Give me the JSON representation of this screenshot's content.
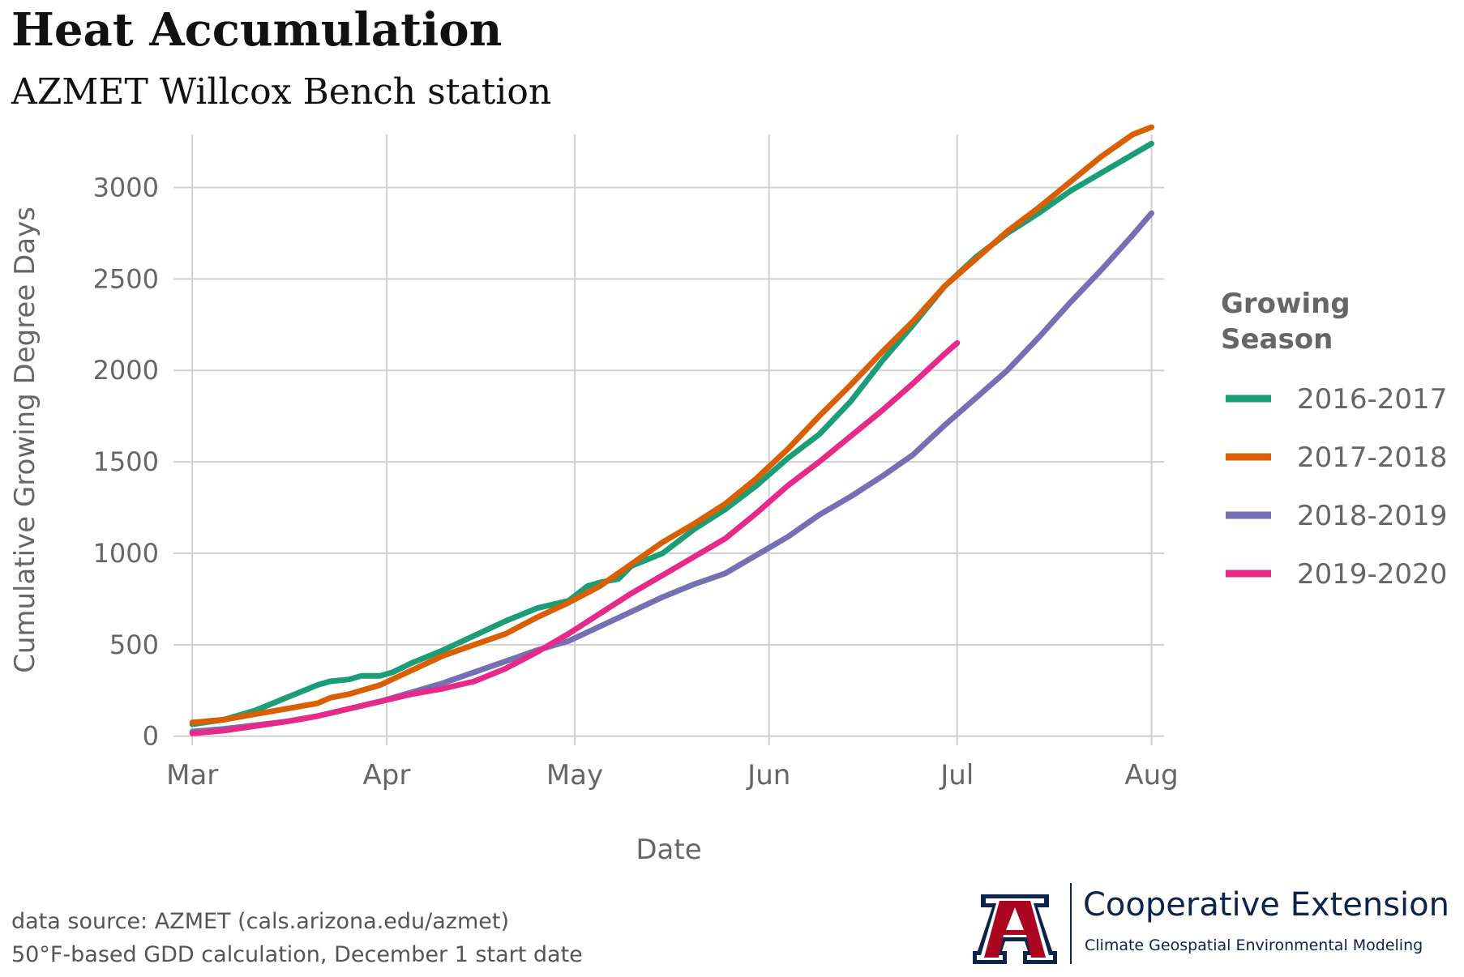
{
  "title": "Heat Accumulation",
  "subtitle": "AZMET Willcox Bench station",
  "chart_data": {
    "type": "line",
    "xlabel": "Date",
    "ylabel": "Cumulative  Growing  Degree  Days",
    "x_ticks": [
      "Mar",
      "Apr",
      "May",
      "Jun",
      "Jul",
      "Aug"
    ],
    "x_tick_days": [
      0,
      31,
      61,
      92,
      122,
      153
    ],
    "y_ticks": [
      0,
      500,
      1000,
      1500,
      2000,
      2500,
      3000
    ],
    "xlim": [
      -3,
      155
    ],
    "ylim": [
      -50,
      3290
    ],
    "grid": true,
    "legend_title": "Growing\nSeason",
    "legend_position": "right",
    "series": [
      {
        "name": "2016-2017",
        "color": "#1b9e77",
        "x": [
          0,
          5,
          10,
          15,
          20,
          22,
          25,
          27,
          30,
          32,
          35,
          40,
          45,
          50,
          55,
          60,
          63,
          65,
          68,
          70,
          75,
          80,
          85,
          90,
          95,
          100,
          105,
          110,
          115,
          120,
          125,
          130,
          135,
          140,
          145,
          150,
          153
        ],
        "y": [
          65,
          90,
          140,
          210,
          280,
          300,
          310,
          330,
          330,
          350,
          400,
          470,
          550,
          630,
          700,
          740,
          820,
          840,
          860,
          930,
          1000,
          1130,
          1240,
          1370,
          1520,
          1650,
          1830,
          2050,
          2250,
          2460,
          2620,
          2750,
          2860,
          2980,
          3080,
          3180,
          3240
        ]
      },
      {
        "name": "2017-2018",
        "color": "#d95f02",
        "x": [
          0,
          5,
          10,
          15,
          20,
          22,
          25,
          30,
          35,
          40,
          45,
          50,
          55,
          60,
          65,
          70,
          75,
          80,
          85,
          90,
          95,
          100,
          105,
          110,
          115,
          120,
          125,
          130,
          135,
          140,
          145,
          150,
          153
        ],
        "y": [
          75,
          90,
          120,
          150,
          180,
          210,
          230,
          280,
          360,
          440,
          500,
          560,
          650,
          730,
          820,
          940,
          1060,
          1160,
          1270,
          1410,
          1570,
          1750,
          1920,
          2100,
          2270,
          2460,
          2610,
          2760,
          2890,
          3030,
          3170,
          3290,
          3330
        ]
      },
      {
        "name": "2018-2019",
        "color": "#7570b3",
        "x": [
          0,
          5,
          10,
          15,
          20,
          25,
          30,
          35,
          40,
          45,
          50,
          55,
          60,
          65,
          70,
          75,
          80,
          85,
          90,
          95,
          100,
          105,
          110,
          115,
          120,
          125,
          130,
          135,
          140,
          145,
          150,
          153
        ],
        "y": [
          25,
          40,
          60,
          80,
          110,
          150,
          190,
          240,
          290,
          350,
          410,
          470,
          520,
          600,
          680,
          760,
          830,
          890,
          990,
          1090,
          1210,
          1310,
          1420,
          1540,
          1700,
          1850,
          2000,
          2180,
          2370,
          2550,
          2740,
          2860
        ]
      },
      {
        "name": "2019-2020",
        "color": "#e7298a",
        "x": [
          0,
          5,
          10,
          15,
          20,
          25,
          30,
          35,
          40,
          45,
          50,
          55,
          60,
          65,
          70,
          75,
          80,
          85,
          90,
          95,
          100,
          105,
          110,
          115,
          120,
          122
        ],
        "y": [
          15,
          30,
          55,
          80,
          110,
          150,
          190,
          230,
          260,
          300,
          370,
          460,
          560,
          670,
          780,
          880,
          980,
          1080,
          1220,
          1370,
          1500,
          1640,
          1780,
          1930,
          2090,
          2150
        ]
      }
    ]
  },
  "caption_line1": "data source: AZMET (cals.arizona.edu/azmet)",
  "caption_line2": "50°F-based GDD calculation, December 1 start date",
  "logo": {
    "letter": "A",
    "org_name": "Cooperative Extension",
    "org_sub": "Climate Geospatial Environmental Modeling",
    "navy": "#0c234b",
    "red": "#ab0520"
  }
}
